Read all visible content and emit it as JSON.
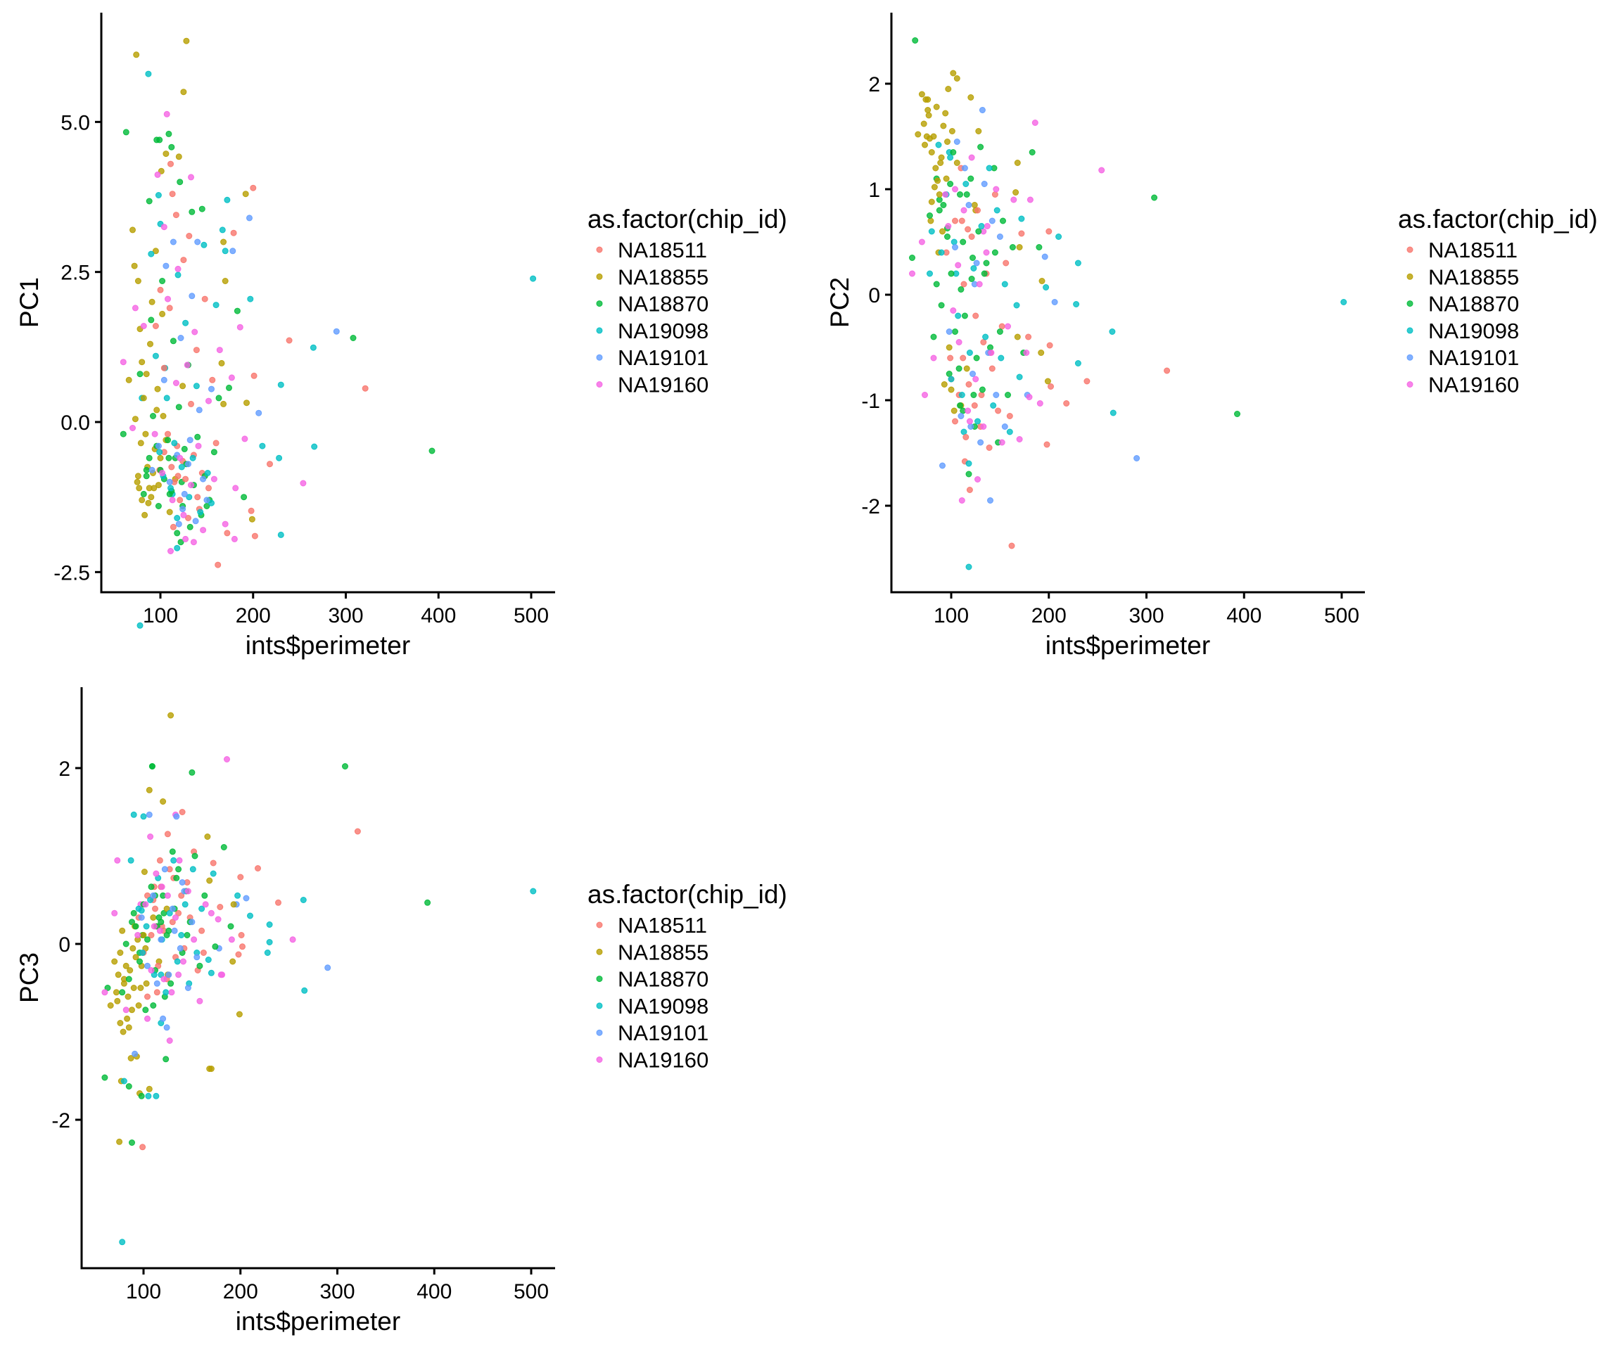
{
  "legend": {
    "title": "as.factor(chip_id)",
    "entries": [
      "NA18511",
      "NA18855",
      "NA18870",
      "NA19098",
      "NA19101",
      "NA19160"
    ],
    "colors": [
      "#F8766D",
      "#B79F00",
      "#00BA38",
      "#00BFC4",
      "#619CFF",
      "#F564E3"
    ]
  },
  "chart_data": [
    {
      "type": "scatter",
      "title": "",
      "xlabel": "ints$perimeter",
      "ylabel": "PC1",
      "xlim": [
        40,
        525
      ],
      "ylim": [
        -2.85,
        6.7
      ],
      "xticks": [
        100,
        200,
        300,
        400,
        500
      ],
      "xtick_labels": [
        "100",
        "200",
        "300",
        "400",
        "500"
      ],
      "yticks": [
        5.0,
        2.5,
        0.0,
        -2.5
      ],
      "ytick_labels": [
        "5.0",
        "2.5",
        "0.0",
        "-2.5"
      ],
      "y_field": 2,
      "grid": false,
      "legend": "right"
    },
    {
      "type": "scatter",
      "title": "",
      "xlabel": "ints$perimeter",
      "ylabel": "PC2",
      "xlim": [
        40,
        525
      ],
      "ylim": [
        -2.8,
        2.65
      ],
      "xticks": [
        100,
        200,
        300,
        400,
        500
      ],
      "xtick_labels": [
        "100",
        "200",
        "300",
        "400",
        "500"
      ],
      "yticks": [
        2,
        1,
        0,
        -1,
        -2
      ],
      "ytick_labels": [
        "2",
        "1",
        "0",
        "-1",
        "-2"
      ],
      "y_field": 3,
      "grid": false,
      "legend": "right"
    },
    {
      "type": "scatter",
      "title": "",
      "xlabel": "ints$perimeter",
      "ylabel": "PC3",
      "xlim": [
        40,
        525
      ],
      "ylim": [
        -3.7,
        2.95
      ],
      "xticks": [
        100,
        200,
        300,
        400,
        500
      ],
      "xtick_labels": [
        "100",
        "200",
        "300",
        "400",
        "500"
      ],
      "yticks": [
        2,
        0,
        -2
      ],
      "ytick_labels": [
        "2",
        "0",
        "-2"
      ],
      "y_field": 4,
      "grid": false,
      "legend": "right"
    }
  ],
  "points_fields": [
    "perimeter",
    "chip_index",
    "PC1",
    "PC2",
    "PC3"
  ],
  "points": [
    [
      502,
      3,
      2.39,
      -0.07,
      0.6
    ],
    [
      393,
      2,
      -0.48,
      -1.13,
      0.47
    ],
    [
      308,
      2,
      1.4,
      0.92,
      2.02
    ],
    [
      290,
      4,
      1.51,
      -1.55,
      -0.27
    ],
    [
      321,
      0,
      0.56,
      -0.72,
      1.28
    ],
    [
      265,
      3,
      1.24,
      -0.35,
      0.5
    ],
    [
      266,
      3,
      -0.41,
      -1.12,
      -0.53
    ],
    [
      254,
      5,
      -1.02,
      1.18,
      0.05
    ],
    [
      239,
      0,
      1.36,
      -0.82,
      0.47
    ],
    [
      230,
      3,
      0.62,
      -0.65,
      0.22
    ],
    [
      230,
      3,
      -1.88,
      0.3,
      0.02
    ],
    [
      228,
      3,
      -0.6,
      -0.09,
      -0.1
    ],
    [
      218,
      0,
      -0.7,
      -1.03,
      0.86
    ],
    [
      210,
      3,
      -0.4,
      0.55,
      0.32
    ],
    [
      206,
      4,
      0.15,
      -0.07,
      0.52
    ],
    [
      201,
      0,
      0.77,
      -0.48,
      0.1
    ],
    [
      200,
      0,
      3.9,
      0.6,
      0.76
    ],
    [
      196,
      4,
      3.4,
      0.36,
      0.45
    ],
    [
      197,
      3,
      2.05,
      0.07,
      0.55
    ],
    [
      192,
      1,
      3.8,
      -0.55,
      -0.2
    ],
    [
      186,
      5,
      1.58,
      1.63,
      2.1
    ],
    [
      193,
      1,
      0.32,
      0.13,
      0.45
    ],
    [
      191,
      5,
      -0.28,
      -1.03,
      0.05
    ],
    [
      199,
      1,
      -1.62,
      -0.82,
      -0.8
    ],
    [
      202,
      0,
      -1.9,
      -0.87,
      -0.03
    ],
    [
      198,
      0,
      -1.48,
      -1.42,
      -0.12
    ],
    [
      190,
      2,
      -1.25,
      0.45,
      0.2
    ],
    [
      183,
      2,
      1.85,
      1.35,
      1.1
    ],
    [
      181,
      5,
      -1.1,
      0.9,
      -0.35
    ],
    [
      179,
      0,
      3.15,
      -0.4,
      0.42
    ],
    [
      178,
      4,
      2.85,
      -0.95,
      -0.05
    ],
    [
      172,
      3,
      3.7,
      0.72,
      0.8
    ],
    [
      170,
      3,
      2.85,
      -0.78,
      -0.33
    ],
    [
      168,
      1,
      3.0,
      1.25,
      0.72
    ],
    [
      167,
      3,
      3.2,
      -0.1,
      -0.18
    ],
    [
      170,
      1,
      2.35,
      0.45,
      -1.42
    ],
    [
      174,
      2,
      0.57,
      -0.55,
      -0.03
    ],
    [
      177,
      5,
      0.74,
      -0.55,
      0.28
    ],
    [
      172,
      0,
      -1.85,
      0.58,
      0.92
    ],
    [
      180,
      5,
      -1.95,
      -0.97,
      -0.35
    ],
    [
      170,
      5,
      -1.7,
      -1.37,
      0.35
    ],
    [
      166,
      1,
      0.98,
      0.97,
      1.22
    ],
    [
      162,
      0,
      -2.38,
      -2.38,
      -0.1
    ],
    [
      118,
      3,
      -1.6,
      -2.58,
      -0.9
    ],
    [
      128,
      1,
      6.35,
      1.55,
      2.6
    ],
    [
      74,
      1,
      6.12,
      1.85,
      -0.35
    ],
    [
      87,
      3,
      5.8,
      1.42,
      0.95
    ],
    [
      125,
      1,
      5.5,
      0.8,
      -0.35
    ],
    [
      107,
      5,
      5.13,
      0.28,
      1.22
    ],
    [
      63,
      2,
      4.83,
      2.41,
      -0.5
    ],
    [
      96,
      2,
      4.7,
      0.63,
      -0.1
    ],
    [
      99,
      2,
      4.7,
      1.05,
      0.1
    ],
    [
      109,
      2,
      4.8,
      0.95,
      2.02
    ],
    [
      112,
      2,
      4.58,
      0.5,
      0.55
    ],
    [
      106,
      1,
      4.47,
      2.05,
      1.75
    ],
    [
      120,
      1,
      4.42,
      1.87,
      1.62
    ],
    [
      101,
      1,
      4.18,
      1.55,
      0.82
    ],
    [
      97,
      5,
      4.12,
      0.65,
      0.45
    ],
    [
      111,
      0,
      4.3,
      0.7,
      0.65
    ],
    [
      133,
      5,
      4.08,
      0.6,
      1.47
    ],
    [
      121,
      2,
      4.0,
      0.15,
      0.35
    ],
    [
      88,
      2,
      3.68,
      0.9,
      0.25
    ],
    [
      98,
      3,
      3.78,
      1.35,
      0.38
    ],
    [
      113,
      0,
      3.8,
      0.1,
      0.2
    ],
    [
      145,
      2,
      3.55,
      0.4,
      0.1
    ],
    [
      78,
      3,
      -3.39,
      0.2,
      -3.39
    ],
    [
      75,
      1,
      -1.0,
      1.5,
      -2.25
    ],
    [
      88,
      2,
      -0.6,
      0.8,
      -2.26
    ],
    [
      99,
      0,
      -0.8,
      -0.6,
      -2.31
    ],
    [
      60,
      2,
      -0.2,
      0.35,
      -1.52
    ],
    [
      77,
      1,
      -1.1,
      1.7,
      -1.56
    ],
    [
      80,
      3,
      0.4,
      0.6,
      -1.56
    ],
    [
      85,
      2,
      -0.9,
      1.1,
      -1.62
    ],
    [
      96,
      1,
      0.2,
      1.45,
      -1.7
    ],
    [
      106,
      1,
      -0.3,
      1.25,
      -1.65
    ],
    [
      113,
      3,
      -1.2,
      -1.3,
      -1.73
    ],
    [
      105,
      3,
      0.9,
      0.2,
      -1.73
    ],
    [
      98,
      2,
      -1.4,
      -0.75,
      -1.73
    ],
    [
      168,
      1,
      0.3,
      -0.4,
      -1.42
    ],
    [
      123,
      2,
      -1.0,
      -0.95,
      -1.31
    ],
    [
      70,
      1,
      3.2,
      1.9,
      -0.2
    ],
    [
      72,
      1,
      2.6,
      1.62,
      -0.55
    ],
    [
      76,
      1,
      2.35,
      1.75,
      -0.1
    ],
    [
      78,
      1,
      1.55,
      1.48,
      0.15
    ],
    [
      80,
      1,
      1.0,
      1.35,
      -0.45
    ],
    [
      82,
      1,
      0.4,
      1.5,
      -0.25
    ],
    [
      84,
      1,
      -0.2,
      1.2,
      -0.6
    ],
    [
      86,
      1,
      -0.75,
      1.08,
      -0.3
    ],
    [
      88,
      1,
      -1.1,
      0.95,
      -0.75
    ],
    [
      90,
      1,
      -1.25,
      1.3,
      -0.5
    ],
    [
      92,
      1,
      -0.85,
      1.6,
      -0.15
    ],
    [
      94,
      1,
      -0.45,
      1.72,
      0.05
    ],
    [
      76,
      1,
      -0.9,
      1.85,
      -0.9
    ],
    [
      80,
      1,
      -1.3,
      0.88,
      -0.4
    ],
    [
      83,
      1,
      -1.55,
      1.02,
      -0.85
    ],
    [
      85,
      1,
      0.8,
      1.78,
      -0.95
    ],
    [
      89,
      1,
      1.3,
      1.25,
      -0.05
    ],
    [
      91,
      1,
      2.0,
      0.6,
      0.2
    ],
    [
      95,
      1,
      2.85,
      1.1,
      -0.7
    ],
    [
      98,
      1,
      -1.05,
      -0.5,
      -0.25
    ],
    [
      100,
      1,
      -0.6,
      -0.9,
      0.1
    ],
    [
      103,
      1,
      0.1,
      -1.1,
      -0.45
    ],
    [
      73,
      1,
      0.05,
      1.42,
      -0.65
    ],
    [
      79,
      1,
      -0.35,
      0.7,
      -1.0
    ],
    [
      66,
      1,
      0.7,
      1.52,
      -0.7
    ],
    [
      87,
      1,
      -1.35,
      0.4,
      -1.3
    ],
    [
      93,
      1,
      -1.1,
      -0.85,
      -1.28
    ],
    [
      97,
      1,
      0.55,
      1.95,
      -0.5
    ],
    [
      102,
      1,
      1.8,
      2.1,
      -0.05
    ],
    [
      110,
      1,
      -1.5,
      -1.05,
      0.3
    ],
    [
      116,
      1,
      -0.95,
      -0.7,
      -0.2
    ],
    [
      124,
      1,
      0.6,
      0.85,
      0.4
    ],
    [
      95,
      0,
      1.6,
      0.4,
      0.3
    ],
    [
      100,
      0,
      2.2,
      -0.8,
      -0.1
    ],
    [
      104,
      0,
      0.9,
      -1.2,
      0.55
    ],
    [
      108,
      0,
      -0.2,
      -0.95,
      0.1
    ],
    [
      112,
      0,
      -0.75,
      -0.6,
      0.4
    ],
    [
      115,
      0,
      -1.0,
      -1.35,
      -0.25
    ],
    [
      118,
      0,
      -0.4,
      -0.85,
      0.65
    ],
    [
      121,
      0,
      -1.3,
      0.55,
      0.15
    ],
    [
      124,
      0,
      -0.65,
      -1.05,
      -0.4
    ],
    [
      127,
      0,
      -0.95,
      0.8,
      0.85
    ],
    [
      130,
      0,
      -1.6,
      -1.25,
      0.25
    ],
    [
      133,
      0,
      0.3,
      -0.45,
      -0.15
    ],
    [
      136,
      0,
      -0.55,
      0.2,
      0.35
    ],
    [
      139,
      0,
      1.2,
      -1.45,
      0.55
    ],
    [
      142,
      0,
      -1.45,
      -0.7,
      -0.05
    ],
    [
      145,
      0,
      -0.85,
      0.95,
      0.7
    ],
    [
      148,
      0,
      2.05,
      -1.1,
      0.3
    ],
    [
      152,
      0,
      -1.1,
      -0.3,
      1.05
    ],
    [
      156,
      0,
      0.7,
      0.3,
      -0.3
    ],
    [
      160,
      0,
      -0.35,
      -1.15,
      0.15
    ],
    [
      117,
      0,
      3.45,
      0.62,
      0.95
    ],
    [
      125,
      0,
      2.7,
      -0.2,
      1.25
    ],
    [
      110,
      0,
      1.9,
      1.2,
      0.5
    ],
    [
      131,
      0,
      3.1,
      -0.95,
      0.75
    ],
    [
      114,
      0,
      -1.75,
      -1.58,
      -0.55
    ],
    [
      119,
      0,
      -0.9,
      -1.85,
      0.2
    ],
    [
      140,
      0,
      -1.25,
      -0.55,
      1.5
    ],
    [
      104,
      0,
      -0.5,
      0.7,
      -0.6
    ],
    [
      92,
      2,
      0.1,
      0.85,
      0.2
    ],
    [
      96,
      2,
      -0.4,
      0.55,
      -0.2
    ],
    [
      100,
      2,
      -0.8,
      0.2,
      0.45
    ],
    [
      104,
      2,
      -0.95,
      -0.35,
      0.05
    ],
    [
      108,
      2,
      -0.3,
      -0.7,
      0.65
    ],
    [
      112,
      2,
      -1.15,
      -1.1,
      -0.3
    ],
    [
      116,
      2,
      -0.6,
      0.95,
      0.3
    ],
    [
      120,
      2,
      0.25,
      1.1,
      0.55
    ],
    [
      124,
      2,
      -1.4,
      -1.25,
      0.1
    ],
    [
      128,
      2,
      -0.7,
      0.6,
      -0.45
    ],
    [
      132,
      2,
      -1.75,
      -0.9,
      0.4
    ],
    [
      136,
      2,
      -1.05,
      0.3,
      0.85
    ],
    [
      140,
      2,
      -0.25,
      -0.5,
      -0.1
    ],
    [
      144,
      2,
      -1.55,
      1.2,
      0.6
    ],
    [
      148,
      2,
      -0.9,
      -1.4,
      0.25
    ],
    [
      153,
      2,
      -1.3,
      0.7,
      1.0
    ],
    [
      158,
      2,
      -0.5,
      -0.95,
      -0.25
    ],
    [
      163,
      2,
      0.4,
      0.45,
      0.55
    ],
    [
      85,
      2,
      -0.8,
      0.1,
      -0.4
    ],
    [
      82,
      2,
      -1.2,
      -0.4,
      0.0
    ],
    [
      78,
      2,
      0.8,
      0.75,
      -0.55
    ],
    [
      90,
      2,
      1.7,
      -0.1,
      0.35
    ],
    [
      102,
      2,
      2.35,
      1.35,
      -0.75
    ],
    [
      114,
      2,
      1.35,
      -0.2,
      0.2
    ],
    [
      118,
      2,
      -1.85,
      -1.7,
      0.25
    ],
    [
      122,
      2,
      -2.0,
      0.35,
      -0.6
    ],
    [
      130,
      2,
      0.95,
      1.4,
      1.05
    ],
    [
      150,
      2,
      -1.4,
      -0.35,
      1.95
    ],
    [
      109,
      2,
      -0.6,
      -1.05,
      2.02
    ],
    [
      134,
      2,
      3.5,
      0.2,
      0.75
    ],
    [
      110,
      2,
      -1.2,
      0.05,
      -0.7
    ],
    [
      126,
      2,
      -0.45,
      -0.6,
      0.15
    ],
    [
      95,
      3,
      1.1,
      0.95,
      0.4
    ],
    [
      99,
      3,
      -0.5,
      1.3,
      -0.1
    ],
    [
      103,
      3,
      -0.9,
      0.5,
      0.2
    ],
    [
      107,
      3,
      0.4,
      -0.2,
      0.5
    ],
    [
      111,
      3,
      -1.1,
      -0.95,
      -0.35
    ],
    [
      115,
      3,
      -0.35,
      1.05,
      0.75
    ],
    [
      119,
      3,
      2.45,
      -0.55,
      0.05
    ],
    [
      123,
      3,
      -0.75,
      0.25,
      -0.55
    ],
    [
      127,
      3,
      1.65,
      -1.2,
      0.35
    ],
    [
      131,
      3,
      -1.25,
      0.65,
      0.95
    ],
    [
      135,
      3,
      -0.6,
      -0.4,
      -0.2
    ],
    [
      139,
      3,
      0.6,
      1.2,
      0.1
    ],
    [
      143,
      3,
      -1.5,
      -1.05,
      0.45
    ],
    [
      147,
      3,
      2.95,
      0.8,
      -0.45
    ],
    [
      151,
      3,
      -0.85,
      -0.6,
      0.85
    ],
    [
      155,
      3,
      -1.35,
      0.1,
      -0.1
    ],
    [
      160,
      3,
      1.95,
      -1.3,
      0.4
    ],
    [
      90,
      3,
      2.8,
      0.4,
      1.47
    ],
    [
      100,
      3,
      3.3,
      -0.8,
      1.45
    ],
    [
      118,
      3,
      -2.1,
      -1.6,
      -0.35
    ],
    [
      98,
      4,
      -0.4,
      -0.35,
      0.3
    ],
    [
      104,
      4,
      0.7,
      0.45,
      -0.25
    ],
    [
      110,
      4,
      -1.0,
      -1.15,
      0.55
    ],
    [
      114,
      4,
      3.0,
      1.2,
      -0.45
    ],
    [
      118,
      4,
      -0.55,
      0.85,
      0.05
    ],
    [
      122,
      4,
      1.4,
      -0.75,
      0.85
    ],
    [
      126,
      4,
      -1.2,
      0.3,
      -0.35
    ],
    [
      130,
      4,
      -0.7,
      -1.4,
      0.4
    ],
    [
      134,
      4,
      2.1,
      1.05,
      1.45
    ],
    [
      138,
      4,
      -1.65,
      -0.55,
      -0.05
    ],
    [
      142,
      4,
      0.2,
      0.7,
      0.6
    ],
    [
      146,
      4,
      -0.95,
      -0.95,
      -0.5
    ],
    [
      150,
      4,
      -1.3,
      0.55,
      0.25
    ],
    [
      155,
      4,
      0.55,
      -1.25,
      -0.15
    ],
    [
      106,
      4,
      2.6,
      1.45,
      1.47
    ],
    [
      91,
      4,
      -0.8,
      -1.62,
      -1.25
    ],
    [
      120,
      4,
      -1.7,
      -1.25,
      -0.85
    ],
    [
      132,
      4,
      -0.3,
      1.75,
      0.15
    ],
    [
      140,
      4,
      3.0,
      -1.95,
      0.7
    ],
    [
      124,
      4,
      -1.45,
      0.1,
      -0.95
    ],
    [
      60,
      5,
      1.0,
      0.2,
      -0.55
    ],
    [
      70,
      5,
      -0.1,
      0.5,
      0.35
    ],
    [
      82,
      5,
      1.6,
      -0.6,
      -0.75
    ],
    [
      94,
      5,
      -0.2,
      0.95,
      0.1
    ],
    [
      102,
      5,
      -0.85,
      -0.15,
      0.45
    ],
    [
      108,
      5,
      2.05,
      -0.45,
      -0.3
    ],
    [
      113,
      5,
      -1.3,
      0.8,
      0.8
    ],
    [
      117,
      5,
      0.65,
      -1.1,
      0.15
    ],
    [
      121,
      5,
      -0.6,
      1.3,
      -0.4
    ],
    [
      125,
      5,
      -1.55,
      -0.8,
      0.55
    ],
    [
      129,
      5,
      0.95,
      0.1,
      -0.55
    ],
    [
      133,
      5,
      -1.05,
      -1.25,
      0.3
    ],
    [
      137,
      5,
      1.5,
      0.65,
      0.95
    ],
    [
      141,
      5,
      -0.4,
      -0.55,
      -0.2
    ],
    [
      146,
      5,
      -1.8,
      1.0,
      0.6
    ],
    [
      152,
      5,
      0.35,
      -1.4,
      0.05
    ],
    [
      158,
      5,
      -0.95,
      -0.3,
      -0.65
    ],
    [
      164,
      5,
      1.2,
      0.9,
      0.45
    ],
    [
      111,
      5,
      -2.15,
      -1.95,
      0.2
    ],
    [
      127,
      5,
      -1.95,
      -1.75,
      -1.1
    ],
    [
      104,
      5,
      3.25,
      1.0,
      -0.85
    ],
    [
      73,
      5,
      1.9,
      -0.95,
      0.95
    ],
    [
      136,
      5,
      -2.0,
      0.4,
      -0.35
    ],
    [
      119,
      5,
      2.55,
      -1.2,
      0.65
    ]
  ]
}
